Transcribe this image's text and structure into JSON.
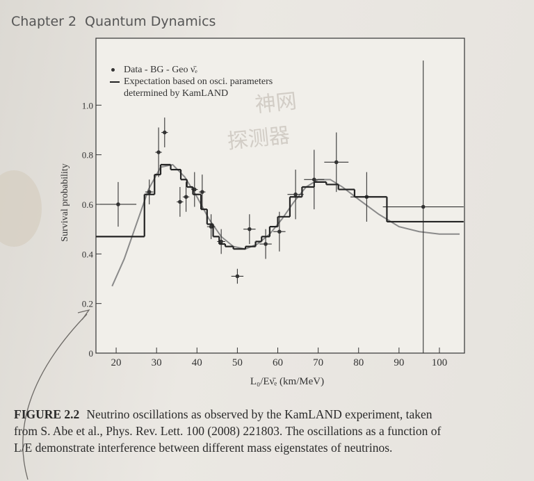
{
  "header": {
    "chapter": "Chapter 2",
    "title": "Quantum Dynamics"
  },
  "chart_data": {
    "type": "errorbar",
    "xlabel": "L₀/Eν̄ₑ (km/MeV)",
    "ylabel": "Survival probability",
    "xlim": [
      15,
      106.2
    ],
    "ylim": [
      0,
      1.27
    ],
    "xticks": [
      20,
      30,
      40,
      50,
      60,
      70,
      80,
      90,
      100
    ],
    "yticks": [
      0,
      0.2,
      0.4,
      0.6,
      0.8,
      {
        "value": 1,
        "label": "1.0"
      }
    ],
    "series": [
      {
        "name": "Data - BG - Geo ν̄ₑ",
        "color": "#333333",
        "x": [
          20.5,
          28.2,
          30.5,
          32,
          35.8,
          37.3,
          39.4,
          41.3,
          43.5,
          46,
          50,
          53,
          57,
          60.4,
          64.4,
          69,
          74.5,
          82,
          96
        ],
        "values": [
          0.6,
          0.65,
          0.81,
          0.89,
          0.61,
          0.63,
          0.66,
          0.65,
          0.51,
          0.45,
          0.31,
          0.5,
          0.44,
          0.49,
          0.64,
          0.7,
          0.77,
          0.63,
          0.59
        ],
        "yerr": [
          0.09,
          0.05,
          0.1,
          0.06,
          0.06,
          0.06,
          0.07,
          0.07,
          0.05,
          0.05,
          0.03,
          0.06,
          0.06,
          0.08,
          0.1,
          0.12,
          0.12,
          0.1,
          0.59
        ],
        "xerr": [
          4.5,
          1,
          0.8,
          0.8,
          0.8,
          0.8,
          0.8,
          0.8,
          1,
          1,
          1.5,
          1.5,
          1.5,
          1.5,
          2,
          2.5,
          3,
          4,
          10
        ]
      },
      {
        "name": "Expectation based on osci. parameters determined by KamLAND",
        "color": "#222222",
        "bins": [
          15,
          27,
          29.5,
          31,
          33.5,
          36,
          37.5,
          39,
          41,
          42.5,
          44,
          45.5,
          47,
          49,
          52,
          54.5,
          56,
          58,
          60,
          63,
          66,
          69,
          72,
          75,
          79,
          87,
          106
        ],
        "values": [
          0.47,
          0.64,
          0.72,
          0.76,
          0.74,
          0.7,
          0.67,
          0.64,
          0.58,
          0.52,
          0.47,
          0.44,
          0.43,
          0.42,
          0.43,
          0.45,
          0.47,
          0.51,
          0.55,
          0.63,
          0.67,
          0.69,
          0.68,
          0.66,
          0.63,
          0.53
        ]
      }
    ],
    "curve": {
      "color": "#8a8a8a",
      "x": [
        19,
        22,
        25,
        28,
        31,
        34,
        37,
        40,
        43,
        46,
        49,
        52,
        55,
        58,
        61,
        64,
        67,
        70,
        73,
        76,
        80,
        85,
        90,
        95,
        100,
        105
      ],
      "values": [
        0.27,
        0.38,
        0.52,
        0.66,
        0.75,
        0.76,
        0.71,
        0.63,
        0.54,
        0.47,
        0.43,
        0.42,
        0.44,
        0.48,
        0.54,
        0.61,
        0.67,
        0.7,
        0.7,
        0.67,
        0.62,
        0.56,
        0.51,
        0.49,
        0.48,
        0.48
      ]
    }
  },
  "watermark": [
    "神网",
    "探测器"
  ],
  "caption": {
    "label": "FIGURE 2.2",
    "lines": [
      "Neutrino oscillations as observed by the KamLAND experiment, taken",
      "from S. Abe et al., Phys. Rev. Lett. 100 (2008) 221803. The oscillations as a function of",
      "L/E demonstrate interference between different mass eigenstates of neutrinos."
    ]
  }
}
